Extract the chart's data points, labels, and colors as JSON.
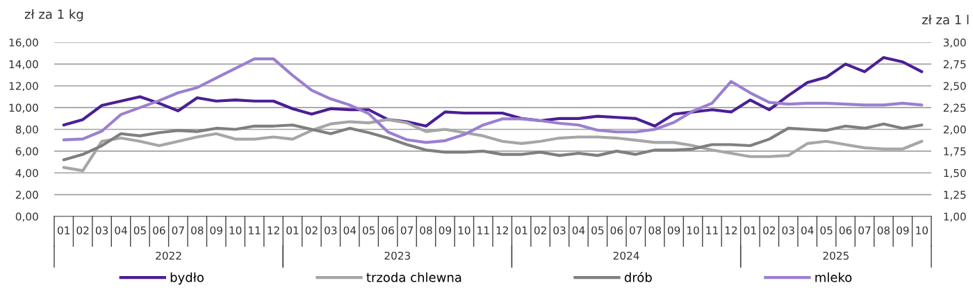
{
  "chart_data": {
    "type": "line",
    "ylabel": "zł za 1 kg",
    "y2label": "zł za 1 l",
    "categories": [
      "01",
      "02",
      "03",
      "04",
      "05",
      "06",
      "07",
      "08",
      "09",
      "10",
      "11",
      "12",
      "01",
      "02",
      "03",
      "04",
      "05",
      "06",
      "07",
      "08",
      "09",
      "10",
      "11",
      "12",
      "01",
      "02",
      "03",
      "04",
      "05",
      "06",
      "07",
      "08",
      "09",
      "10",
      "11",
      "12",
      "01",
      "02",
      "03",
      "04",
      "05",
      "06",
      "07",
      "08",
      "09",
      "10"
    ],
    "annotations": [
      "2022",
      "2023",
      "2024",
      "2025"
    ],
    "series": [
      {
        "name": "bydło",
        "color": "#4b1e96",
        "values": [
          8.4,
          8.9,
          10.2,
          10.6,
          11.0,
          10.4,
          9.7,
          10.9,
          10.6,
          10.7,
          10.6,
          10.6,
          9.9,
          9.4,
          9.9,
          9.8,
          9.8,
          8.9,
          8.7,
          8.3,
          9.6,
          9.5,
          9.5,
          9.5,
          9.0,
          8.8,
          9.0,
          9.0,
          9.2,
          9.1,
          9.0,
          8.3,
          9.4,
          9.6,
          9.8,
          9.6,
          10.7,
          9.8,
          11.1,
          12.3,
          12.8,
          14.0,
          13.3,
          14.6,
          14.2,
          13.3
        ]
      },
      {
        "name": "trzoda chlewna",
        "color": "#a6a6a6",
        "values": [
          4.5,
          4.2,
          6.9,
          7.2,
          6.9,
          6.5,
          6.9,
          7.3,
          7.6,
          7.1,
          7.1,
          7.3,
          7.1,
          7.9,
          8.5,
          8.7,
          8.6,
          8.9,
          8.6,
          7.8,
          8.0,
          7.7,
          7.4,
          6.9,
          6.7,
          6.9,
          7.2,
          7.3,
          7.3,
          7.2,
          7.0,
          6.8,
          6.8,
          6.5,
          6.1,
          5.8,
          5.5,
          5.5,
          5.6,
          6.7,
          6.9,
          6.6,
          6.3,
          6.2,
          6.2,
          6.9
        ]
      },
      {
        "name": "drób",
        "color": "#7f7f7f",
        "values": [
          5.2,
          5.7,
          6.5,
          7.6,
          7.4,
          7.7,
          7.9,
          7.8,
          8.1,
          8.0,
          8.3,
          8.3,
          8.4,
          8.0,
          7.6,
          8.1,
          7.7,
          7.2,
          6.6,
          6.1,
          5.9,
          5.9,
          6.0,
          5.7,
          5.7,
          5.9,
          5.6,
          5.8,
          5.6,
          6.0,
          5.7,
          6.1,
          6.1,
          6.2,
          6.6,
          6.6,
          6.5,
          7.1,
          8.1,
          8.0,
          7.9,
          8.3,
          8.1,
          8.5,
          8.1,
          8.4
        ]
      },
      {
        "name": "mleko",
        "color": "#9b7fd0",
        "axis": "y2",
        "values": [
          1.88,
          1.89,
          1.98,
          2.17,
          2.25,
          2.33,
          2.42,
          2.48,
          2.59,
          2.7,
          2.81,
          2.81,
          2.62,
          2.45,
          2.35,
          2.28,
          2.18,
          1.97,
          1.88,
          1.85,
          1.87,
          1.94,
          2.05,
          2.12,
          2.12,
          2.1,
          2.07,
          2.05,
          1.99,
          1.97,
          1.97,
          2.0,
          2.08,
          2.21,
          2.3,
          2.55,
          2.42,
          2.31,
          2.29,
          2.3,
          2.3,
          2.29,
          2.28,
          2.28,
          2.3,
          2.28
        ]
      }
    ],
    "ylim": [
      0,
      16
    ],
    "yticks": [
      {
        "value": 0,
        "label": "0,00"
      },
      {
        "value": 2,
        "label": "2,00"
      },
      {
        "value": 4,
        "label": "4,00"
      },
      {
        "value": 6,
        "label": "6,00"
      },
      {
        "value": 8,
        "label": "8,00"
      },
      {
        "value": 10,
        "label": "10,00"
      },
      {
        "value": 12,
        "label": "12,00"
      },
      {
        "value": 14,
        "label": "14,00"
      },
      {
        "value": 16,
        "label": "16,00"
      }
    ],
    "y2lim": [
      1,
      3
    ],
    "y2ticks": [
      {
        "value": 1,
        "label": "1,00"
      },
      {
        "value": 1.25,
        "label": "1,25"
      },
      {
        "value": 1.5,
        "label": "1,50"
      },
      {
        "value": 1.75,
        "label": "1,75"
      },
      {
        "value": 2,
        "label": "2,00"
      },
      {
        "value": 2.25,
        "label": "2,25"
      },
      {
        "value": 2.5,
        "label": "2,50"
      },
      {
        "value": 2.75,
        "label": "2,75"
      },
      {
        "value": 3,
        "label": "3,00"
      }
    ],
    "grid": "y",
    "legend": "bottom",
    "marker": "none",
    "line_style": "solid"
  }
}
